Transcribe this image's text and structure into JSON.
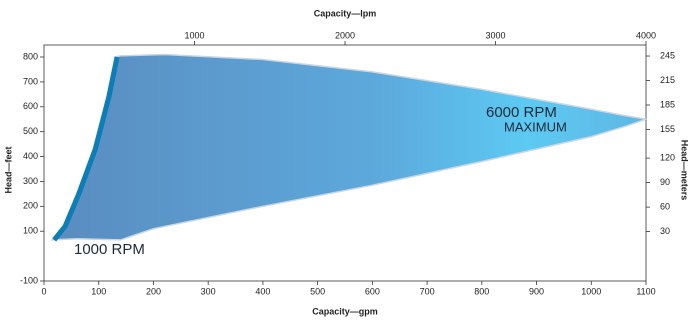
{
  "chart_data": {
    "type": "area",
    "x_label": "Capacity—gpm",
    "x2_label": "Capacity—lpm",
    "y_label": "Head—feet",
    "y2_label": "Head—meters",
    "annotations": [
      "6000 RPM",
      "MAXIMUM",
      "1000 RPM"
    ],
    "series": [
      {
        "color": "#5f9fd4",
        "x": [
          15,
          35,
          60,
          90,
          115,
          130,
          140,
          220,
          400,
          600,
          800,
          1000,
          1060,
          1100,
          1060,
          1000,
          800,
          600,
          400,
          200,
          140,
          60,
          15
        ],
        "values": [
          65,
          120,
          250,
          430,
          640,
          800,
          805,
          810,
          790,
          740,
          670,
          590,
          565,
          550,
          520,
          480,
          380,
          285,
          200,
          110,
          65,
          70,
          65
        ]
      }
    ],
    "xlim": [
      0,
      1100
    ],
    "xticks": [
      0,
      100,
      200,
      300,
      400,
      500,
      600,
      700,
      800,
      900,
      1000,
      1100
    ],
    "x2lim": [
      0,
      4000
    ],
    "x2ticks": [
      1000,
      2000,
      3000,
      4000
    ],
    "ylim": [
      -100,
      800
    ],
    "yticks": [
      -100,
      100,
      200,
      300,
      400,
      500,
      600,
      700,
      800
    ],
    "y2lim": [
      -30.5,
      243.8
    ],
    "y2ticks": [
      30,
      60,
      90,
      120,
      155,
      185,
      215,
      245
    ],
    "edge_color": "#0c7db6"
  }
}
